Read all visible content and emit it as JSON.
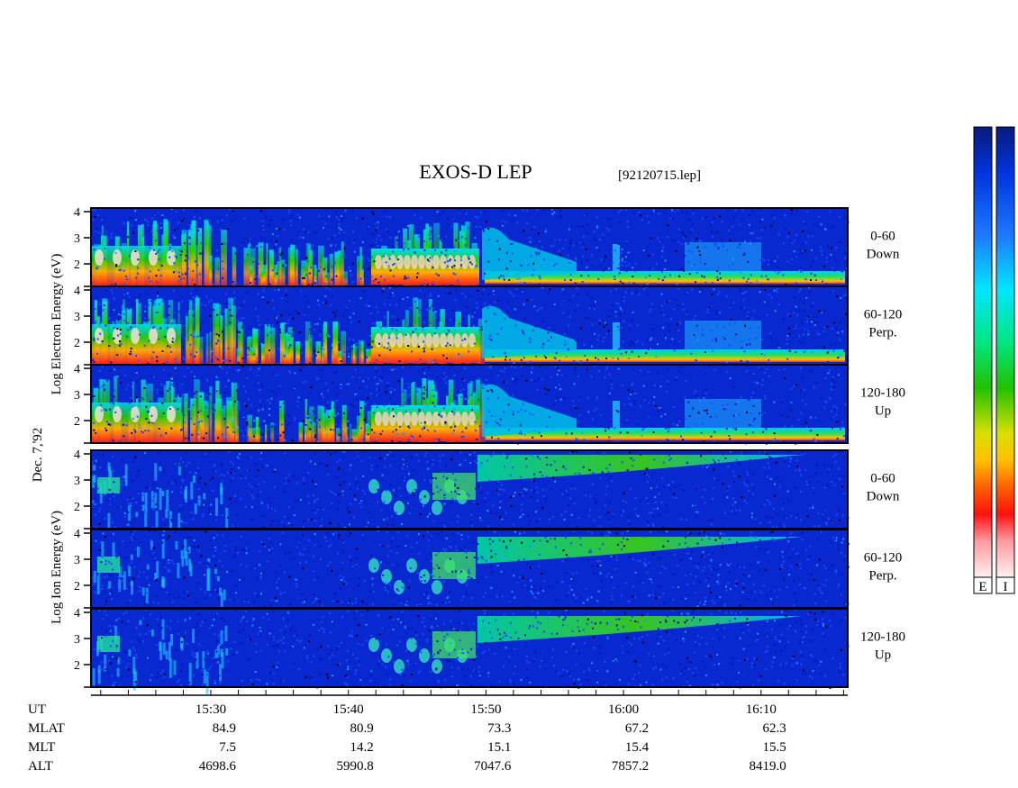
{
  "title": "EXOS-D LEP",
  "file_label": "[92120715.lep]",
  "date_label": "Dec. 7,'92",
  "electron_axis_label": "Log  Electron  Energy (eV)",
  "ion_axis_label": "Log   Ion  Energy (eV)",
  "colorbar": {
    "labels": [
      "E",
      "I"
    ],
    "colors": [
      "#0a1a7a",
      "#0033dd",
      "#1e78ff",
      "#00e6ff",
      "#00e680",
      "#22c000",
      "#d8e000",
      "#ffc000",
      "#ff6000",
      "#ff1010",
      "#ff9aa0",
      "#fff0f0"
    ]
  },
  "channels": [
    {
      "line1": "0-60",
      "line2": "Down"
    },
    {
      "line1": "60-120",
      "line2": "Perp."
    },
    {
      "line1": "120-180",
      "line2": "Up"
    },
    {
      "line1": "0-60",
      "line2": "Down"
    },
    {
      "line1": "60-120",
      "line2": "Perp."
    },
    {
      "line1": "120-180",
      "line2": "Up"
    }
  ],
  "footer": {
    "row_labels": [
      "UT",
      "MLAT",
      "MLT",
      "ALT"
    ],
    "columns": [
      {
        "ut": "15:30",
        "mlat": "84.9",
        "mlt": "7.5",
        "alt": "4698.6"
      },
      {
        "ut": "15:40",
        "mlat": "80.9",
        "mlt": "14.2",
        "alt": "5990.8"
      },
      {
        "ut": "15:50",
        "mlat": "73.3",
        "mlt": "15.1",
        "alt": "7047.6"
      },
      {
        "ut": "16:00",
        "mlat": "67.2",
        "mlt": "15.4",
        "alt": "7857.2"
      },
      {
        "ut": "16:10",
        "mlat": "62.3",
        "mlt": "15.5",
        "alt": "8419.0"
      }
    ]
  },
  "chart_data": {
    "type": "heatmap",
    "title": "EXOS-D LEP",
    "x_label": "UT",
    "x_range": [
      "15:22",
      "16:17"
    ],
    "x_ticks": [
      "15:30",
      "15:40",
      "15:50",
      "16:00",
      "16:10"
    ],
    "y_label": "Log Energy (eV)",
    "y_range": [
      1,
      4
    ],
    "y_ticks": [
      "2",
      "3",
      "4"
    ],
    "panels": [
      {
        "species": "Electron",
        "pitch_angle": "0-60",
        "direction": "Down"
      },
      {
        "species": "Electron",
        "pitch_angle": "60-120",
        "direction": "Perp."
      },
      {
        "species": "Electron",
        "pitch_angle": "120-180",
        "direction": "Up"
      },
      {
        "species": "Ion",
        "pitch_angle": "0-60",
        "direction": "Down"
      },
      {
        "species": "Ion",
        "pitch_angle": "60-120",
        "direction": "Perp."
      },
      {
        "species": "Ion",
        "pitch_angle": "120-180",
        "direction": "Up"
      }
    ]
  }
}
